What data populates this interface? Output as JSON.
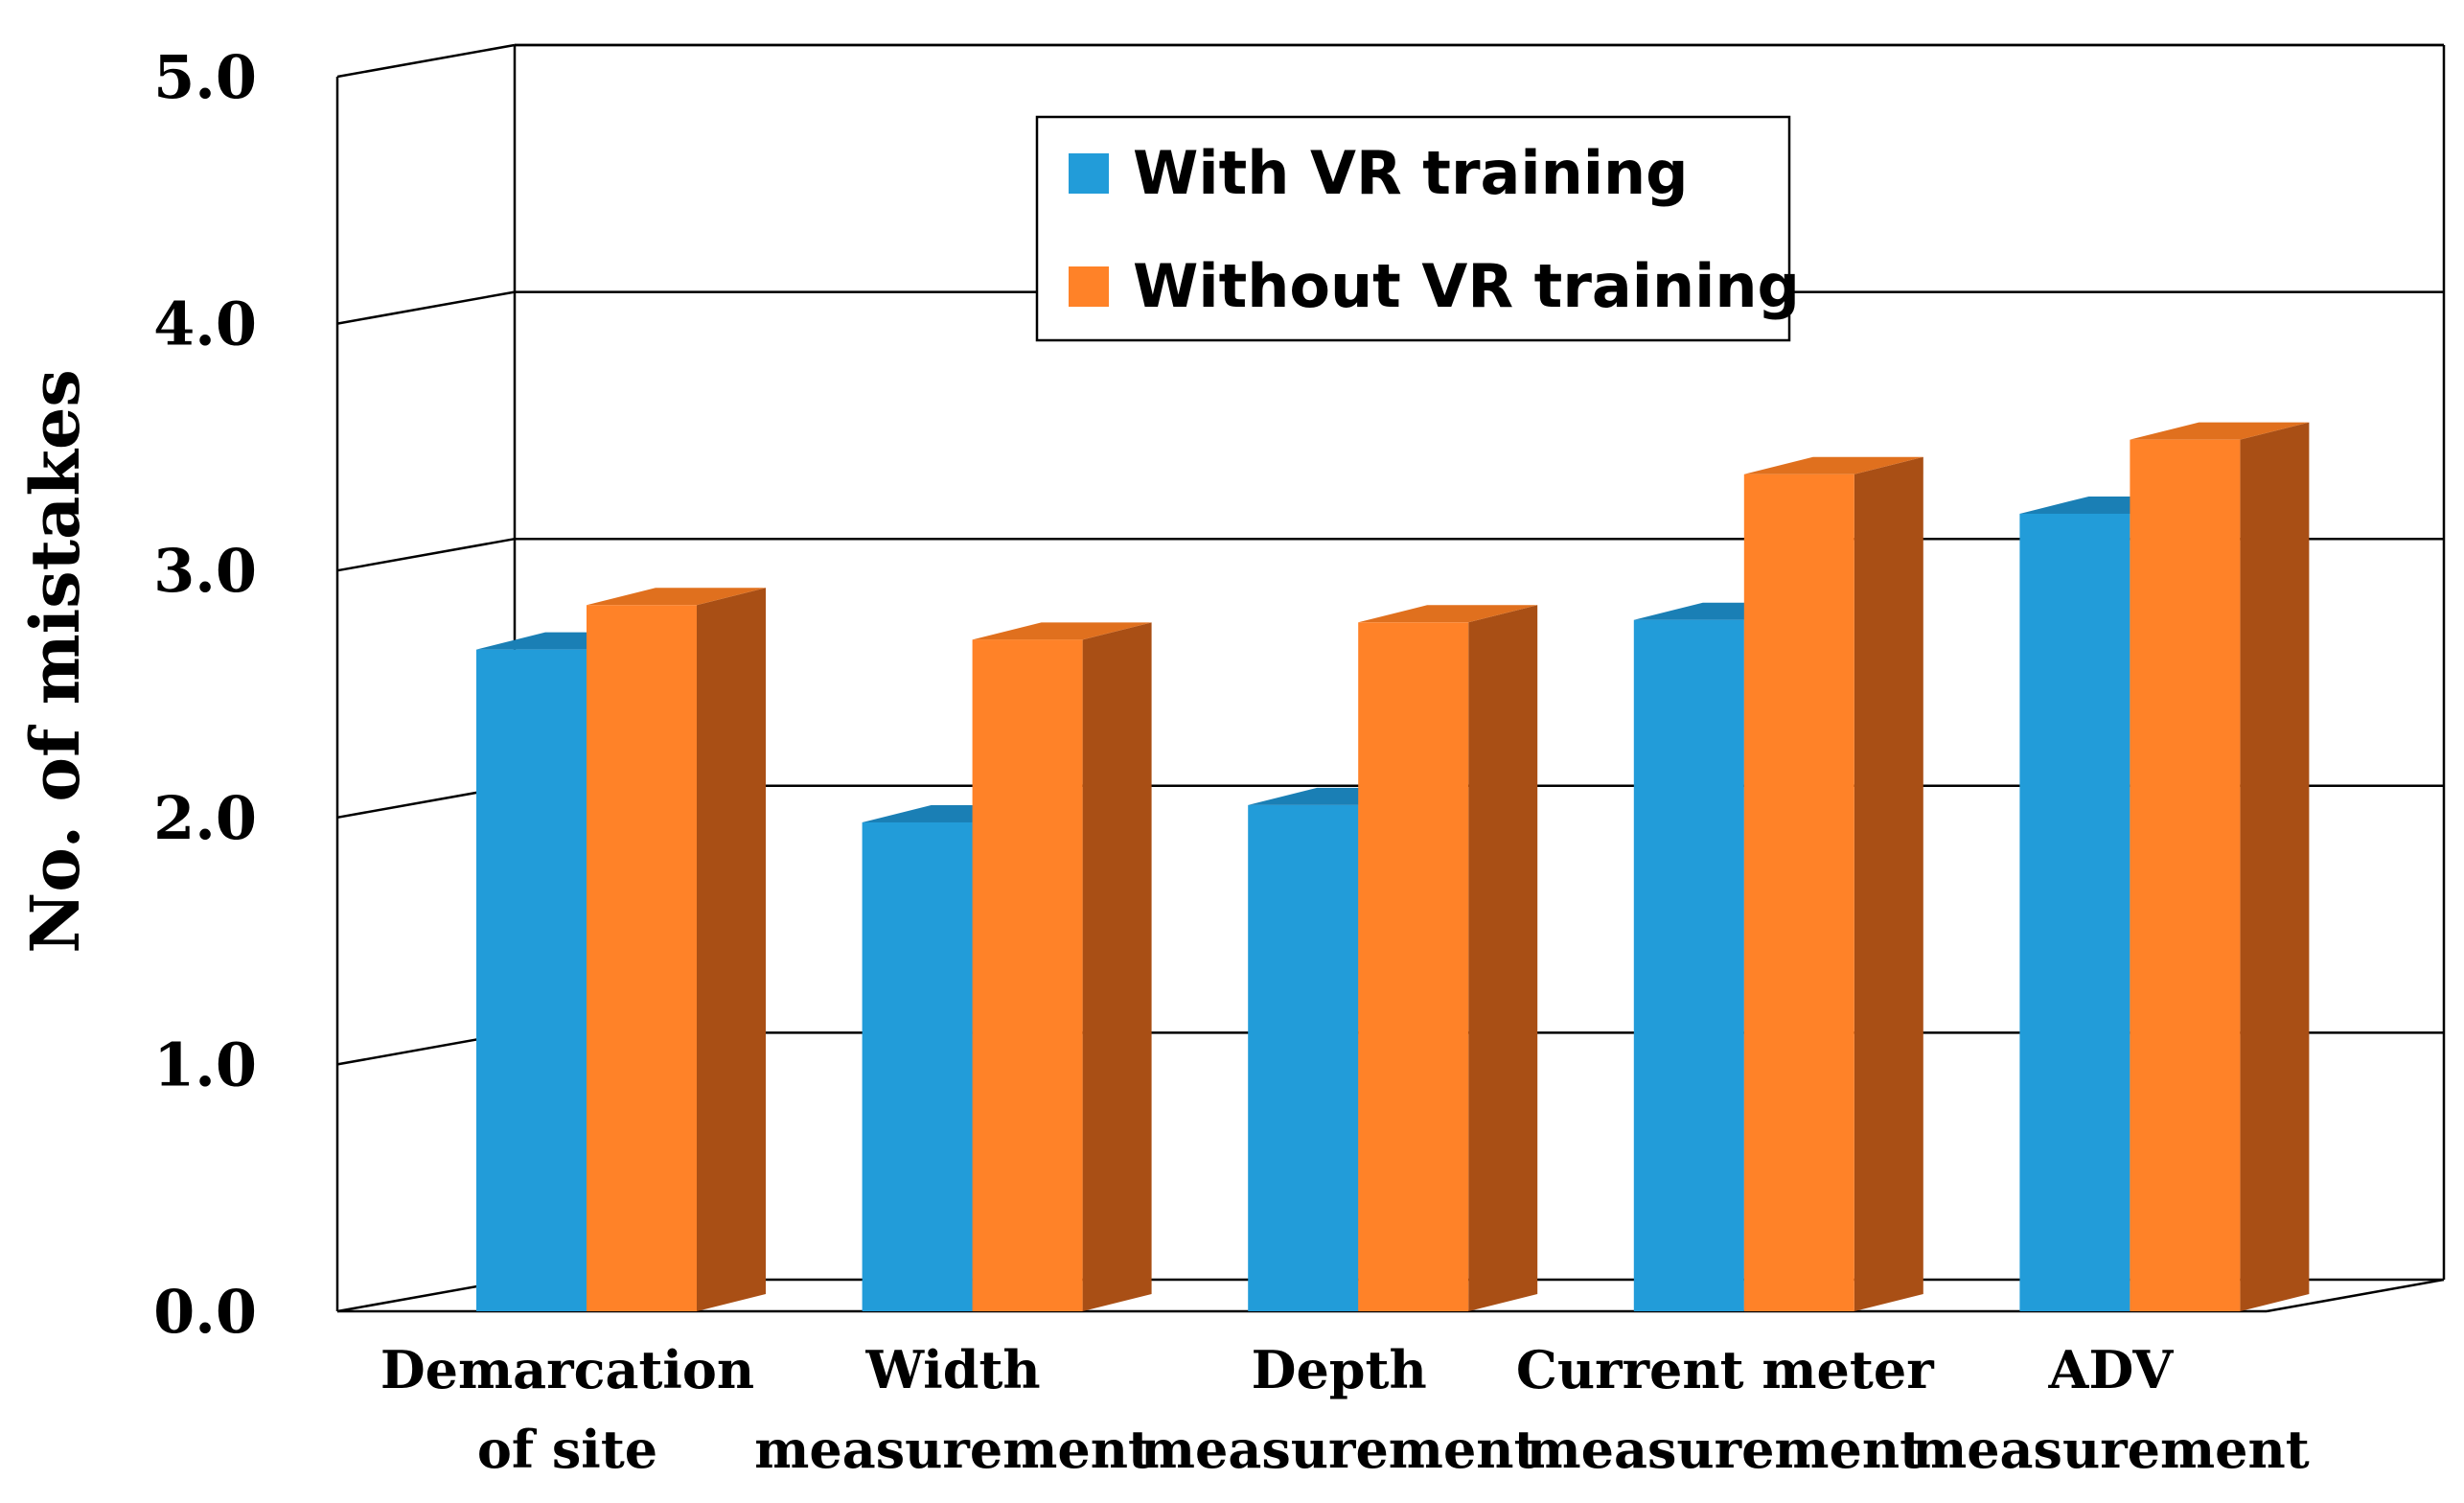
{
  "chart_data": {
    "type": "bar",
    "style": "3d-clustered",
    "title": "",
    "xlabel": "",
    "ylabel": "No. of mistakes",
    "ylim": [
      0,
      5
    ],
    "yticks": [
      "0.0",
      "1.0",
      "2.0",
      "3.0",
      "4.0",
      "5.0"
    ],
    "grid": true,
    "legend_position": "top-center",
    "categories": [
      [
        "Demarcation",
        "of site"
      ],
      [
        "Width",
        "measurement"
      ],
      [
        "Depth",
        "measurement"
      ],
      [
        "Current meter",
        "measurement"
      ],
      [
        "ADV",
        "measurement"
      ]
    ],
    "series": [
      {
        "name": "With VR training",
        "color": "#229cd9",
        "top_color": "#1a7fb5",
        "values": [
          2.68,
          1.98,
          2.05,
          2.8,
          3.23
        ]
      },
      {
        "name": "Without VR training",
        "color": "#ff8228",
        "side_color": "#a94f15",
        "top_color": "#e0701e",
        "values": [
          2.86,
          2.72,
          2.79,
          3.39,
          3.53
        ]
      }
    ]
  }
}
